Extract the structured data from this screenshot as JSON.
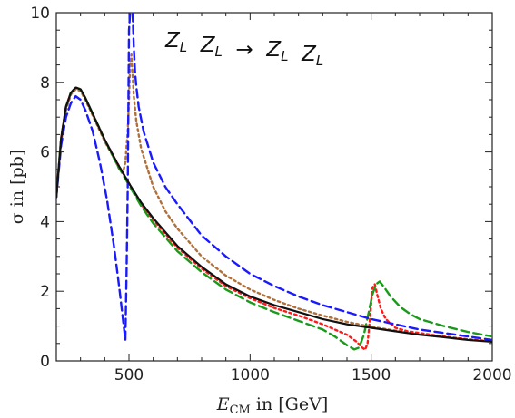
{
  "chart_data": {
    "type": "line",
    "title": "",
    "annotation": "Z_L Z_L → Z_L Z_L",
    "xlabel": "E_CM in [GeV]",
    "xlabel_main": "E",
    "xlabel_sub": "CM",
    "xlabel_rest": " in [GeV]",
    "ylabel": "σ in [pb]",
    "xlim": [
      200,
      2000
    ],
    "ylim": [
      0,
      10
    ],
    "xticks": [
      500,
      1000,
      1500,
      2000
    ],
    "yticks": [
      0,
      2,
      4,
      6,
      8,
      10
    ],
    "grid": false,
    "legend": "none",
    "series": [
      {
        "color": "#111111",
        "dash": "solid",
        "x": [
          200,
          220,
          240,
          260,
          280,
          300,
          320,
          350,
          400,
          450,
          500,
          550,
          600,
          700,
          800,
          900,
          1000,
          1100,
          1200,
          1300,
          1400,
          1500,
          1600,
          1700,
          1800,
          1900,
          2000
        ],
        "y": [
          4.7,
          6.4,
          7.3,
          7.7,
          7.85,
          7.8,
          7.55,
          7.1,
          6.35,
          5.7,
          5.1,
          4.55,
          4.1,
          3.3,
          2.7,
          2.2,
          1.85,
          1.6,
          1.4,
          1.2,
          1.05,
          0.95,
          0.85,
          0.75,
          0.68,
          0.6,
          0.55
        ]
      },
      {
        "color": "#1a1aff",
        "dash": "dashed",
        "x": [
          200,
          220,
          240,
          260,
          280,
          300,
          320,
          350,
          380,
          410,
          440,
          460,
          475,
          485,
          490,
          495,
          500,
          505,
          510,
          515,
          520,
          525,
          530,
          540,
          560,
          600,
          650,
          700,
          800,
          900,
          1000,
          1100,
          1200,
          1300,
          1400,
          1500,
          1600,
          1700,
          1800,
          1900,
          2000
        ],
        "y": [
          4.7,
          6.2,
          7.0,
          7.4,
          7.6,
          7.5,
          7.2,
          6.6,
          5.7,
          4.6,
          3.2,
          2.1,
          1.2,
          0.6,
          2.5,
          5.0,
          9.5,
          10.0,
          10.0,
          10.0,
          9.0,
          8.3,
          7.9,
          7.3,
          6.6,
          5.7,
          5.0,
          4.5,
          3.6,
          3.0,
          2.5,
          2.15,
          1.85,
          1.6,
          1.4,
          1.2,
          1.05,
          0.9,
          0.8,
          0.7,
          0.6
        ]
      },
      {
        "color": "#b0703a",
        "dash": "dotted",
        "x": [
          200,
          220,
          240,
          260,
          280,
          300,
          320,
          350,
          400,
          440,
          460,
          475,
          485,
          495,
          500,
          505,
          510,
          515,
          520,
          530,
          550,
          600,
          650,
          700,
          800,
          900,
          1000,
          1100,
          1200,
          1300,
          1400,
          1500,
          1600,
          1700,
          1800,
          1900,
          2000
        ],
        "y": [
          4.7,
          6.3,
          7.2,
          7.65,
          7.8,
          7.75,
          7.5,
          7.05,
          6.3,
          5.8,
          5.5,
          5.4,
          5.7,
          6.6,
          7.5,
          8.6,
          8.8,
          8.2,
          7.6,
          6.9,
          6.1,
          5.0,
          4.3,
          3.8,
          3.0,
          2.45,
          2.05,
          1.75,
          1.5,
          1.3,
          1.12,
          0.98,
          0.87,
          0.77,
          0.69,
          0.62,
          0.56
        ]
      },
      {
        "color": "#ff1a1a",
        "dash": "dotted",
        "x": [
          200,
          220,
          240,
          260,
          280,
          300,
          320,
          350,
          400,
          450,
          500,
          550,
          600,
          700,
          800,
          900,
          1000,
          1100,
          1200,
          1300,
          1400,
          1440,
          1460,
          1475,
          1485,
          1495,
          1505,
          1515,
          1525,
          1540,
          1560,
          1600,
          1650,
          1700,
          1800,
          1900,
          2000
        ],
        "y": [
          4.7,
          6.4,
          7.3,
          7.7,
          7.85,
          7.8,
          7.55,
          7.1,
          6.35,
          5.7,
          5.1,
          4.5,
          4.05,
          3.25,
          2.65,
          2.15,
          1.8,
          1.52,
          1.3,
          1.05,
          0.75,
          0.55,
          0.4,
          0.32,
          0.5,
          1.2,
          2.1,
          2.2,
          1.9,
          1.5,
          1.2,
          0.95,
          0.85,
          0.8,
          0.7,
          0.62,
          0.55
        ]
      },
      {
        "color": "#1a9a1a",
        "dash": "dashed",
        "x": [
          200,
          220,
          240,
          260,
          280,
          300,
          320,
          350,
          400,
          450,
          500,
          550,
          600,
          700,
          800,
          900,
          1000,
          1100,
          1200,
          1300,
          1350,
          1400,
          1430,
          1450,
          1470,
          1490,
          1505,
          1520,
          1535,
          1550,
          1580,
          1620,
          1660,
          1700,
          1800,
          1900,
          2000
        ],
        "y": [
          4.7,
          6.4,
          7.3,
          7.7,
          7.85,
          7.8,
          7.55,
          7.1,
          6.35,
          5.65,
          5.05,
          4.45,
          3.95,
          3.15,
          2.55,
          2.05,
          1.68,
          1.4,
          1.15,
          0.9,
          0.7,
          0.45,
          0.33,
          0.38,
          0.75,
          1.4,
          1.9,
          2.2,
          2.28,
          2.15,
          1.85,
          1.55,
          1.35,
          1.2,
          1.0,
          0.83,
          0.7
        ]
      }
    ]
  }
}
